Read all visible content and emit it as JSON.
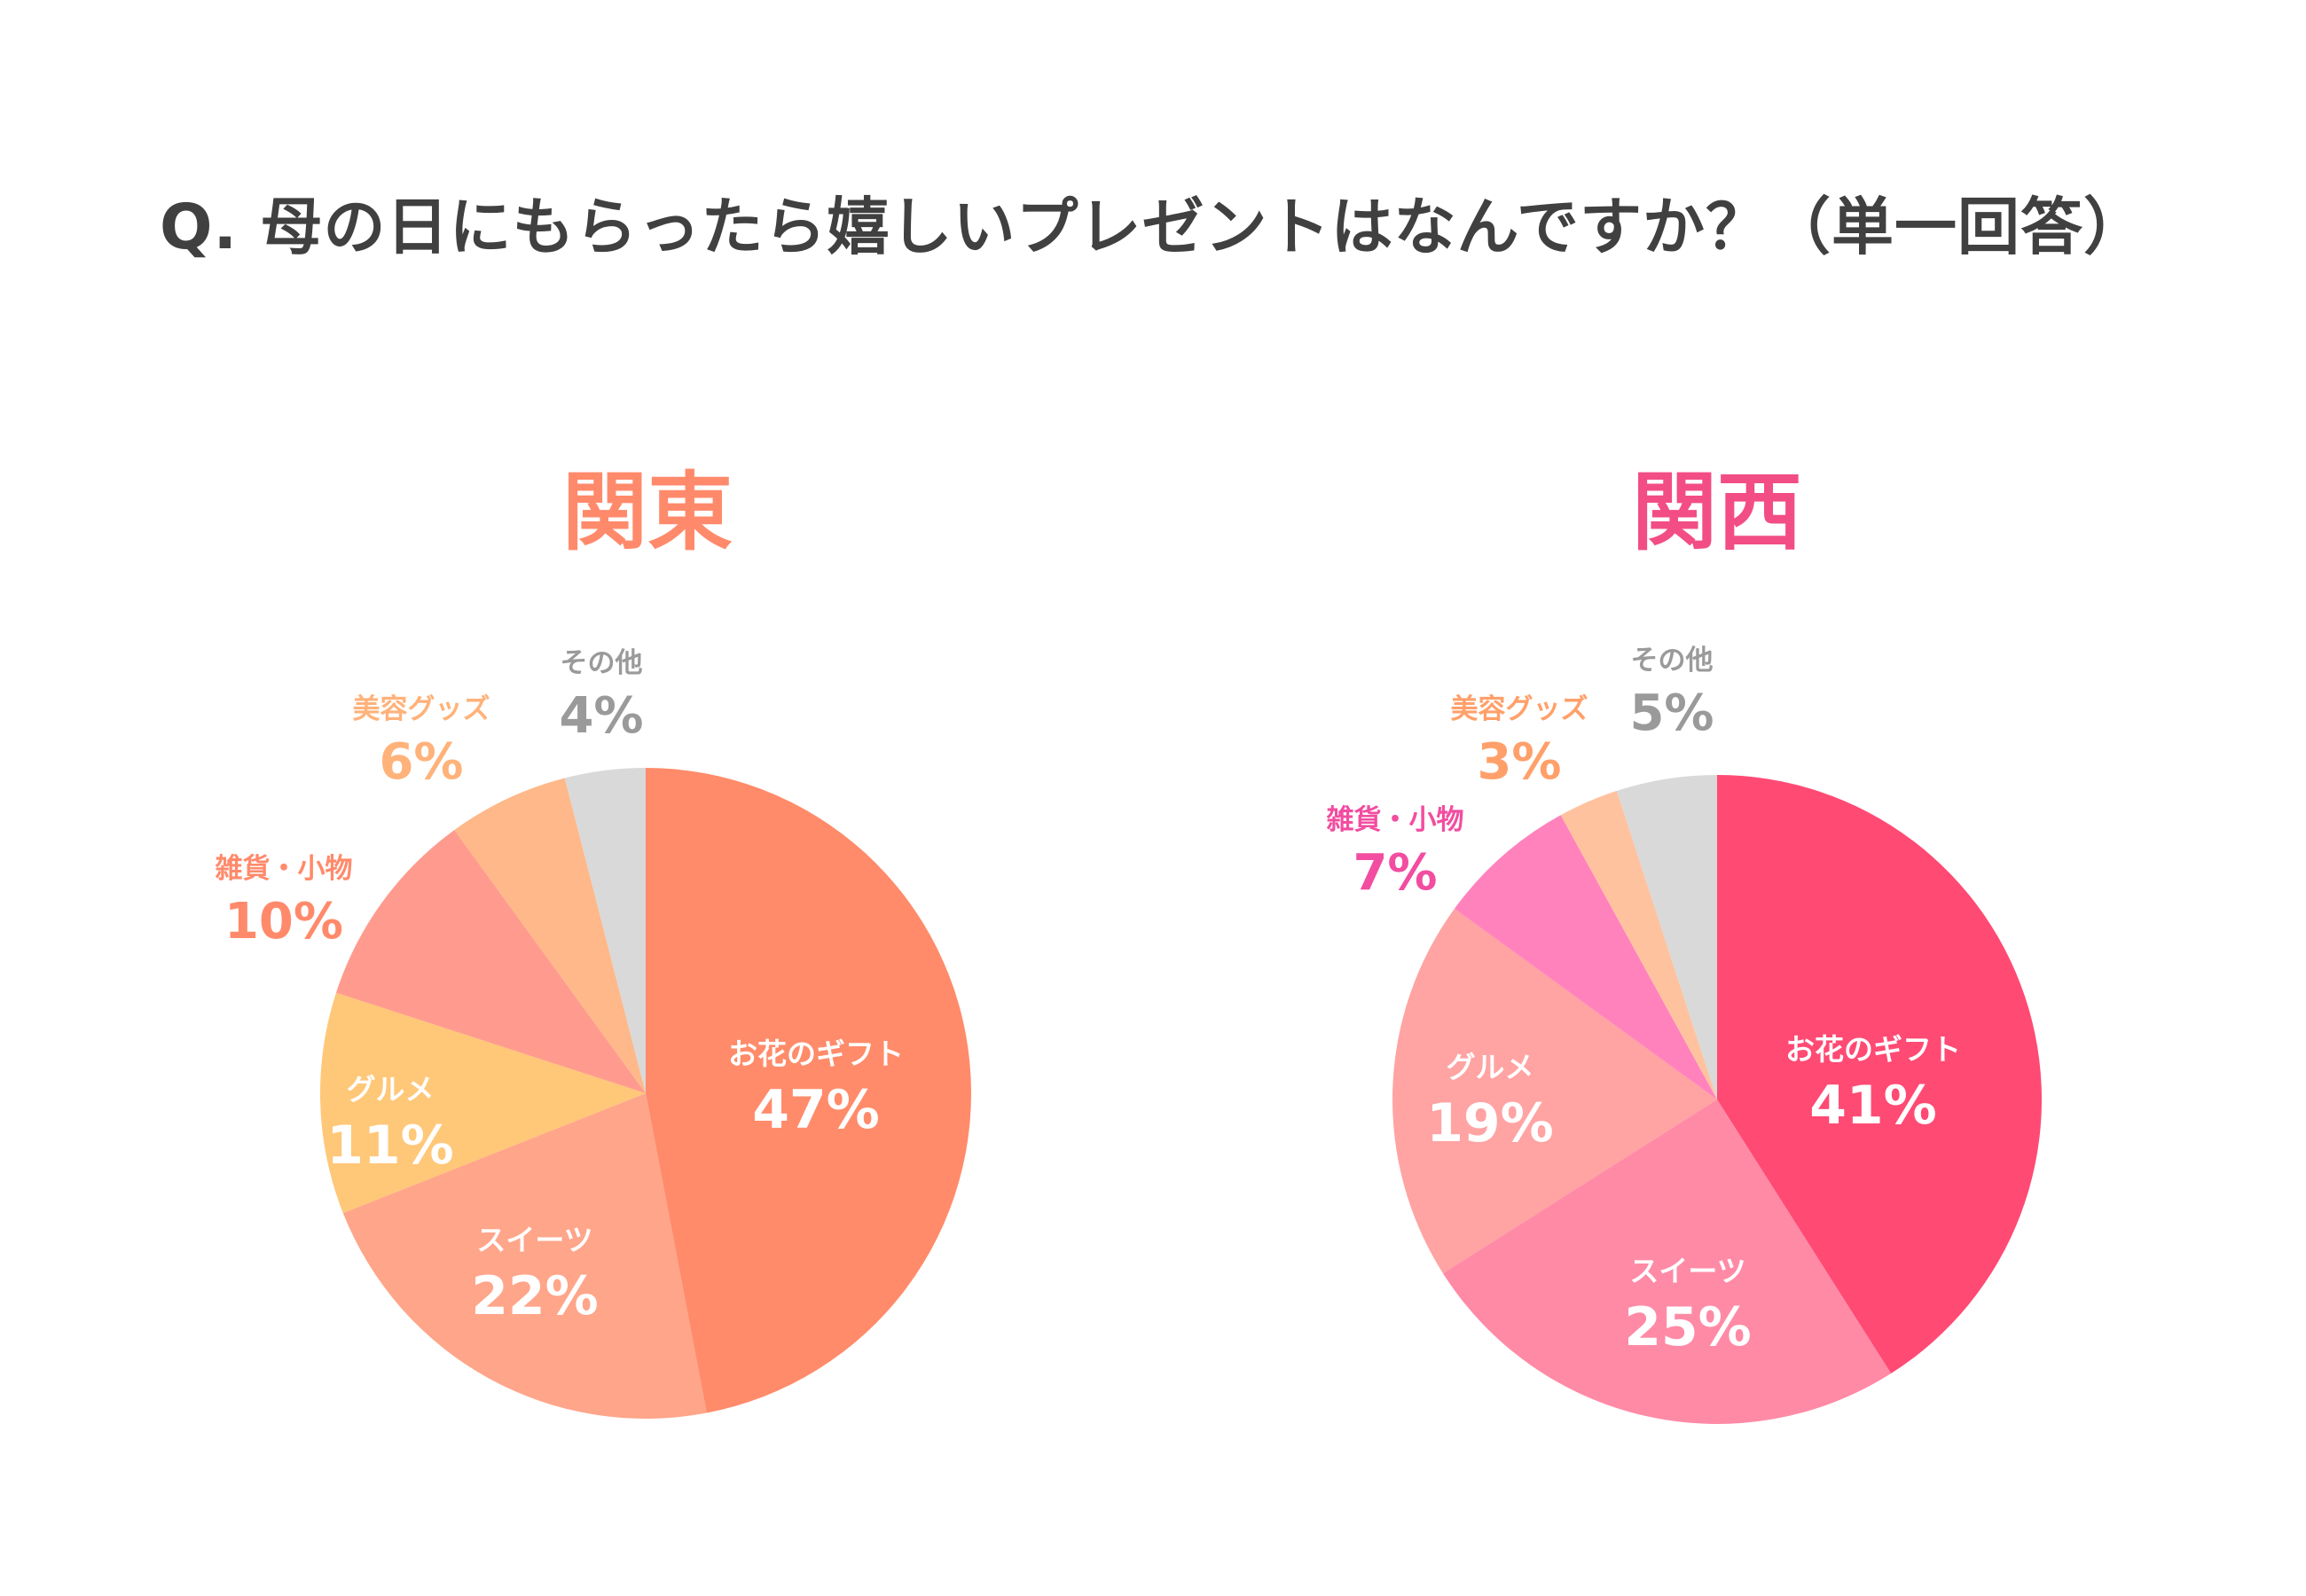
{
  "title": "Q. 母の日にもらったら嬉しいプレゼントはなんですか？（単一回答）",
  "chart_data": [
    {
      "type": "pie",
      "title": "関東",
      "title_color": "#ff8a6b",
      "slices": [
        {
          "label": "お花のギフト",
          "value": 47,
          "display": "47%",
          "color": "#ff8b6a",
          "label_color": "#ffffff",
          "placement": "inside"
        },
        {
          "label": "スイーツ",
          "value": 22,
          "display": "22%",
          "color": "#ffa58a",
          "label_color": "#ffffff",
          "placement": "inside"
        },
        {
          "label": "グルメ",
          "value": 11,
          "display": "11%",
          "color": "#ffc778",
          "label_color": "#ffffff",
          "placement": "inside"
        },
        {
          "label": "雑貨・小物",
          "value": 10,
          "display": "10%",
          "color": "#ff9b8e",
          "label_color": "#ff8a6b",
          "placement": "outside"
        },
        {
          "label": "美容グッズ",
          "value": 6,
          "display": "6%",
          "color": "#ffb889",
          "label_color": "#ffb27a",
          "placement": "outside"
        },
        {
          "label": "その他",
          "value": 4,
          "display": "4%",
          "color": "#d9d9d9",
          "label_color": "#9a9a9a",
          "placement": "outside"
        }
      ]
    },
    {
      "type": "pie",
      "title": "関西",
      "title_color": "#f24d84",
      "slices": [
        {
          "label": "お花のギフト",
          "value": 41,
          "display": "41%",
          "color": "#ff4a74",
          "label_color": "#ffffff",
          "placement": "inside"
        },
        {
          "label": "スイーツ",
          "value": 25,
          "display": "25%",
          "color": "#ff8aa6",
          "label_color": "#ffffff",
          "placement": "inside"
        },
        {
          "label": "グルメ",
          "value": 19,
          "display": "19%",
          "color": "#ffa3a3",
          "label_color": "#ffffff",
          "placement": "inside"
        },
        {
          "label": "雑貨・小物",
          "value": 7,
          "display": "7%",
          "color": "#ff82bd",
          "label_color": "#f24da0",
          "placement": "outside"
        },
        {
          "label": "美容グッズ",
          "value": 3,
          "display": "3%",
          "color": "#ffc29f",
          "label_color": "#ffa06a",
          "placement": "outside"
        },
        {
          "label": "その他",
          "value": 5,
          "display": "5%",
          "color": "#d9d9d9",
          "label_color": "#9a9a9a",
          "placement": "outside"
        }
      ]
    }
  ]
}
